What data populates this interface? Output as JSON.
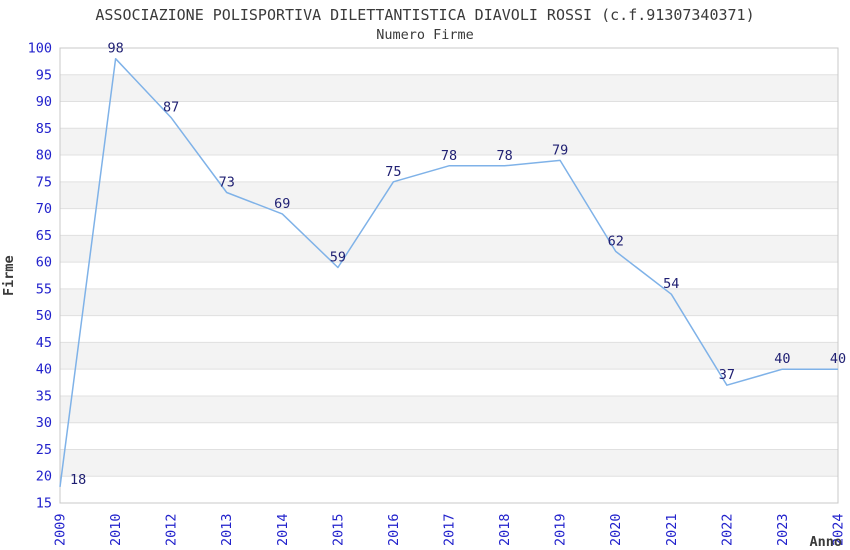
{
  "chart_data": {
    "type": "line",
    "title": "ASSOCIAZIONE POLISPORTIVA DILETTANTISTICA DIAVOLI ROSSI (c.f.91307340371)",
    "subtitle": "Numero Firme",
    "xlabel": "Anno",
    "ylabel": "Firme",
    "x": [
      "2009",
      "2010",
      "2012",
      "2013",
      "2014",
      "2015",
      "2016",
      "2017",
      "2018",
      "2019",
      "2020",
      "2021",
      "2022",
      "2023",
      "2024"
    ],
    "values": [
      18,
      98,
      87,
      73,
      69,
      59,
      75,
      78,
      78,
      79,
      62,
      54,
      37,
      40,
      40
    ],
    "ylim": [
      15,
      100
    ],
    "ytick_step": 5,
    "grid": true,
    "alternating_bands": true,
    "legend": "none",
    "colors": {
      "line": "#7fb2e8",
      "tick_label": "#2222cc",
      "data_label": "#1f1f72",
      "title_text": "#3a3a3a",
      "axis_title": "#3a3a3a",
      "gridline": "#e0e0e0",
      "band": "#f3f3f3",
      "plot_border": "#c8c8c8",
      "background": "#ffffff"
    }
  }
}
